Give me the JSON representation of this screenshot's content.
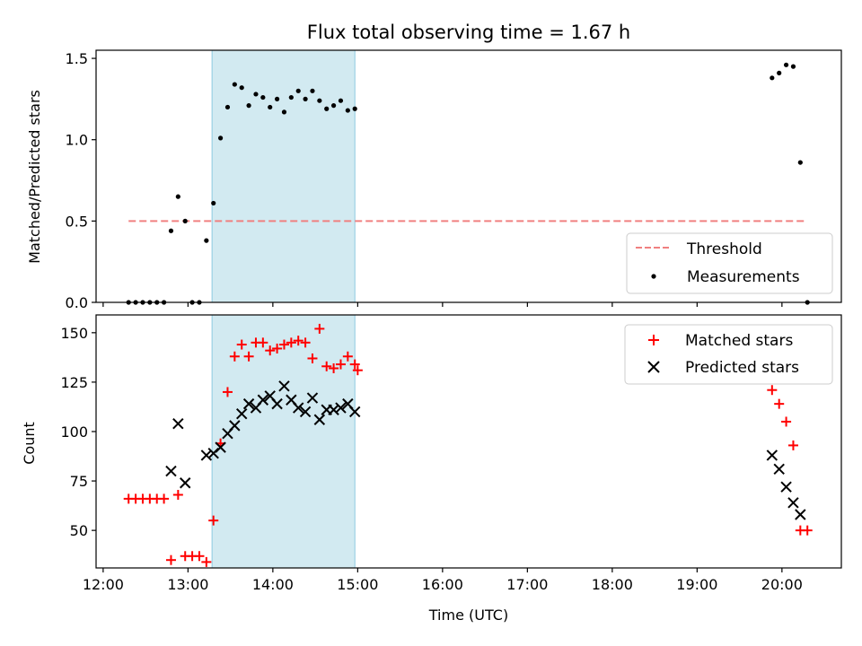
{
  "chart_data": [
    {
      "type": "scatter",
      "title": "Flux total observing time = 1.67 h",
      "ylabel": "Matched/Predicted stars",
      "xlabel": "",
      "ylim": [
        0,
        1.55
      ],
      "xlim": [
        "11:55",
        "20:42"
      ],
      "yticks": [
        "0.0",
        "0.5",
        "1.0",
        "1.5"
      ],
      "yticks_values": [
        0,
        0.5,
        1.0,
        1.5
      ],
      "shaded_span": {
        "start": "13:17",
        "end": "14:58",
        "color": "#add8e6"
      },
      "threshold": {
        "name": "Threshold",
        "y": 0.5,
        "x_start": "12:18",
        "x_end": "20:18",
        "color": "#f08080",
        "style": "dashed"
      },
      "legend": {
        "placement": "lower-right",
        "entries": [
          "Threshold",
          "Measurements"
        ]
      },
      "series": [
        {
          "name": "Measurements",
          "marker": "dot",
          "color": "#000000",
          "points": [
            [
              "12:18",
              0.0
            ],
            [
              "12:23",
              0.0
            ],
            [
              "12:28",
              0.0
            ],
            [
              "12:33",
              0.0
            ],
            [
              "12:38",
              0.0
            ],
            [
              "12:43",
              0.0
            ],
            [
              "12:48",
              0.44
            ],
            [
              "12:53",
              0.65
            ],
            [
              "12:58",
              0.5
            ],
            [
              "13:03",
              0.0
            ],
            [
              "13:08",
              0.0
            ],
            [
              "13:13",
              0.38
            ],
            [
              "13:18",
              0.61
            ],
            [
              "13:23",
              1.01
            ],
            [
              "13:28",
              1.2
            ],
            [
              "13:33",
              1.34
            ],
            [
              "13:38",
              1.32
            ],
            [
              "13:43",
              1.21
            ],
            [
              "13:48",
              1.28
            ],
            [
              "13:53",
              1.26
            ],
            [
              "13:58",
              1.2
            ],
            [
              "14:03",
              1.25
            ],
            [
              "14:08",
              1.17
            ],
            [
              "14:13",
              1.26
            ],
            [
              "14:18",
              1.3
            ],
            [
              "14:23",
              1.25
            ],
            [
              "14:28",
              1.3
            ],
            [
              "14:33",
              1.24
            ],
            [
              "14:38",
              1.19
            ],
            [
              "14:43",
              1.21
            ],
            [
              "14:48",
              1.24
            ],
            [
              "14:53",
              1.18
            ],
            [
              "14:58",
              1.19
            ],
            [
              "19:53",
              1.38
            ],
            [
              "19:58",
              1.41
            ],
            [
              "20:03",
              1.46
            ],
            [
              "20:08",
              1.45
            ],
            [
              "20:13",
              0.86
            ],
            [
              "20:18",
              0.0
            ]
          ]
        }
      ]
    },
    {
      "type": "scatter",
      "title": "",
      "ylabel": "Count",
      "xlabel": "Time (UTC)",
      "ylim": [
        31,
        159
      ],
      "xlim": [
        "11:55",
        "20:42"
      ],
      "yticks": [
        "50",
        "75",
        "100",
        "125",
        "150"
      ],
      "yticks_values": [
        50,
        75,
        100,
        125,
        150
      ],
      "xticks": [
        "12:00",
        "13:00",
        "14:00",
        "15:00",
        "16:00",
        "17:00",
        "18:00",
        "19:00",
        "20:00"
      ],
      "shaded_span": {
        "start": "13:17",
        "end": "14:58",
        "color": "#add8e6"
      },
      "legend": {
        "placement": "top-right",
        "entries": [
          "Matched stars",
          "Predicted stars"
        ]
      },
      "series": [
        {
          "name": "Matched stars",
          "marker": "plus",
          "color": "#ff0000",
          "points": [
            [
              "12:18",
              66
            ],
            [
              "12:23",
              66
            ],
            [
              "12:28",
              66
            ],
            [
              "12:33",
              66
            ],
            [
              "12:38",
              66
            ],
            [
              "12:43",
              66
            ],
            [
              "12:48",
              35
            ],
            [
              "12:53",
              68
            ],
            [
              "12:58",
              37
            ],
            [
              "13:03",
              37
            ],
            [
              "13:08",
              37
            ],
            [
              "13:13",
              34
            ],
            [
              "13:18",
              55
            ],
            [
              "13:23",
              94
            ],
            [
              "13:28",
              120
            ],
            [
              "13:33",
              138
            ],
            [
              "13:38",
              144
            ],
            [
              "13:43",
              138
            ],
            [
              "13:48",
              145
            ],
            [
              "13:53",
              145
            ],
            [
              "13:58",
              141
            ],
            [
              "14:03",
              142
            ],
            [
              "14:08",
              144
            ],
            [
              "14:13",
              145
            ],
            [
              "14:18",
              146
            ],
            [
              "14:23",
              145
            ],
            [
              "14:28",
              137
            ],
            [
              "14:33",
              152
            ],
            [
              "14:38",
              133
            ],
            [
              "14:43",
              132
            ],
            [
              "14:48",
              134
            ],
            [
              "14:53",
              138
            ],
            [
              "14:58",
              134
            ],
            [
              "15:00",
              131
            ],
            [
              "19:53",
              121
            ],
            [
              "19:58",
              114
            ],
            [
              "20:03",
              105
            ],
            [
              "20:08",
              93
            ],
            [
              "20:13",
              50
            ],
            [
              "20:18",
              50
            ]
          ]
        },
        {
          "name": "Predicted stars",
          "marker": "x",
          "color": "#000000",
          "points": [
            [
              "12:48",
              80
            ],
            [
              "12:53",
              104
            ],
            [
              "12:58",
              74
            ],
            [
              "13:13",
              88
            ],
            [
              "13:18",
              89
            ],
            [
              "13:23",
              92
            ],
            [
              "13:28",
              99
            ],
            [
              "13:33",
              103
            ],
            [
              "13:38",
              109
            ],
            [
              "13:43",
              114
            ],
            [
              "13:48",
              112
            ],
            [
              "13:53",
              116
            ],
            [
              "13:58",
              118
            ],
            [
              "14:03",
              114
            ],
            [
              "14:08",
              123
            ],
            [
              "14:13",
              116
            ],
            [
              "14:18",
              112
            ],
            [
              "14:23",
              110
            ],
            [
              "14:28",
              117
            ],
            [
              "14:33",
              106
            ],
            [
              "14:38",
              111
            ],
            [
              "14:43",
              111
            ],
            [
              "14:48",
              112
            ],
            [
              "14:53",
              114
            ],
            [
              "14:58",
              110
            ],
            [
              "19:53",
              88
            ],
            [
              "19:58",
              81
            ],
            [
              "20:03",
              72
            ],
            [
              "20:08",
              64
            ],
            [
              "20:13",
              58
            ]
          ]
        }
      ]
    }
  ]
}
